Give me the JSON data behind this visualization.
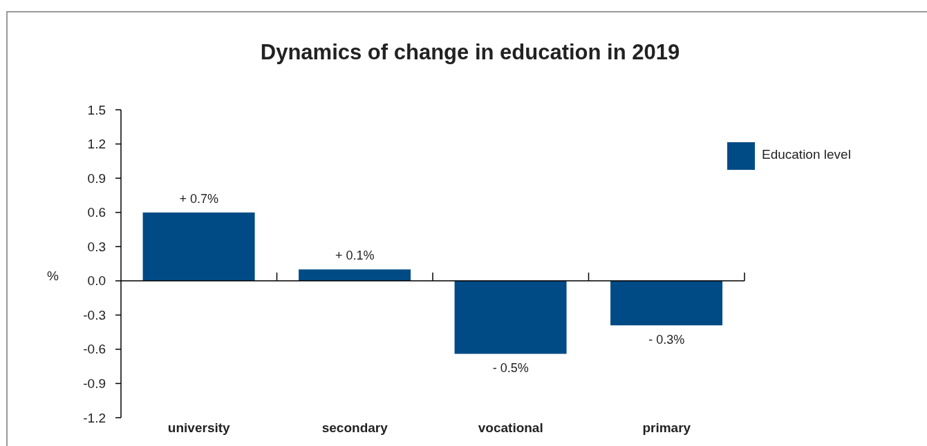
{
  "chart_data": {
    "type": "bar",
    "title": "Dynamics of change in education in 2019",
    "ylabel": "%",
    "categories": [
      "university",
      "secondary",
      "vocational",
      "primary"
    ],
    "series": [
      {
        "name": "Education level",
        "color": "#004b85",
        "values": [
          0.6,
          0.1,
          -0.64,
          -0.39
        ]
      }
    ],
    "annotations": [
      {
        "text": "+ 0.7%",
        "x": "university",
        "y": 0.6
      },
      {
        "text": "+ 0.1%",
        "x": "secondary",
        "y": 0.1
      },
      {
        "text": "- 0.5%",
        "x": "vocational",
        "y": -0.64
      },
      {
        "text": "- 0.3%",
        "x": "primary",
        "y": -0.39
      }
    ],
    "ylim": [
      -1.2,
      1.5
    ],
    "yticks": [
      1.5,
      1.2,
      0.9,
      0.6,
      0.3,
      {
        "value": 0,
        "label": "0.0"
      },
      -0.3,
      -0.6,
      -0.9,
      -1.2
    ],
    "legend": "top right"
  }
}
